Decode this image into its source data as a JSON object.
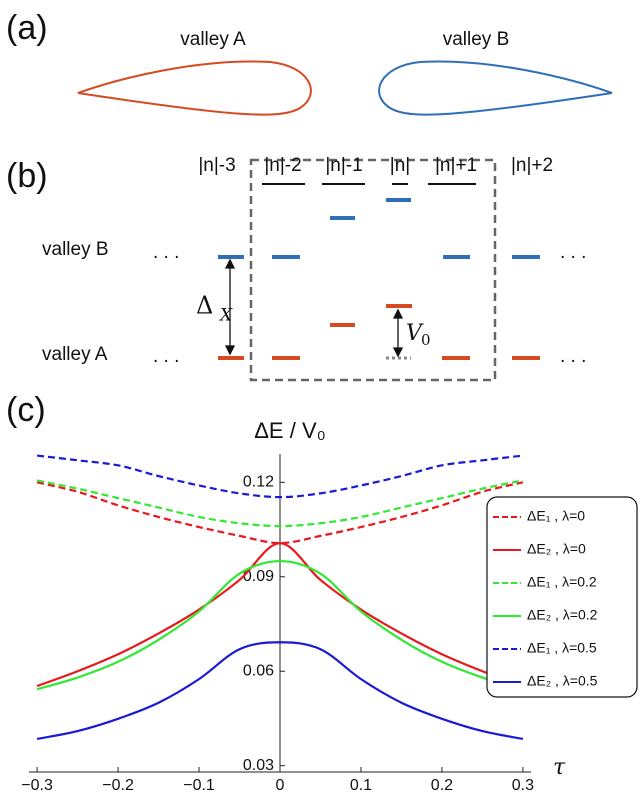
{
  "panel_a": {
    "label": "(a)",
    "valley_labels": [
      "valley A",
      "valley B"
    ]
  },
  "panel_b": {
    "label": "(b)",
    "levels": [
      "|n|-3",
      "|n|-2",
      "|n|-1",
      "|n|",
      "|n|+1",
      "|n|+2"
    ],
    "rows": [
      "valley B",
      "valley A"
    ],
    "ellipsis": ". . .",
    "delta": "Δ",
    "delta_sub": "X",
    "v": "V",
    "v_sub": "0"
  },
  "chart_data": {
    "type": "line",
    "panel_label": "(c)",
    "ylabel": "ΔE / V₀",
    "xlabel": "τ",
    "x": [
      -0.3,
      -0.25,
      -0.2,
      -0.15,
      -0.1,
      -0.05,
      0,
      0.05,
      0.1,
      0.15,
      0.2,
      0.25,
      0.3
    ],
    "xlim": [
      -0.31,
      0.31
    ],
    "ylim": [
      0.028,
      0.129
    ],
    "xticks": [
      {
        "value": -0.3,
        "label": "−0.3"
      },
      {
        "value": -0.2,
        "label": "−0.2"
      },
      {
        "value": -0.1,
        "label": "−0.1"
      },
      0,
      0.1,
      0.2,
      0.3
    ],
    "yticks": [
      0.03,
      0.06,
      0.09,
      0.12
    ],
    "legend": "right",
    "series": [
      {
        "name": "ΔE₁ , λ=0",
        "color": "#e8191e",
        "dash": "dashed",
        "values": [
          0.12,
          0.117,
          0.1127,
          0.109,
          0.1058,
          0.103,
          0.1007,
          0.103,
          0.1058,
          0.109,
          0.1127,
          0.117,
          0.12
        ]
      },
      {
        "name": "ΔE₂ , λ=0",
        "color": "#e8191e",
        "dash": "solid",
        "values": [
          0.0553,
          0.06,
          0.0654,
          0.072,
          0.0796,
          0.089,
          0.1007,
          0.089,
          0.0796,
          0.072,
          0.0654,
          0.06,
          0.0553
        ]
      },
      {
        "name": "ΔE₁ , λ=0.2",
        "color": "#33e833",
        "dash": "dashed",
        "values": [
          0.1206,
          0.118,
          0.115,
          0.112,
          0.109,
          0.107,
          0.1061,
          0.107,
          0.109,
          0.112,
          0.115,
          0.118,
          0.1206
        ]
      },
      {
        "name": "ΔE₂ , λ=0.2",
        "color": "#33e833",
        "dash": "solid",
        "values": [
          0.0543,
          0.058,
          0.063,
          0.07,
          0.079,
          0.091,
          0.095,
          0.091,
          0.079,
          0.07,
          0.063,
          0.058,
          0.0543
        ]
      },
      {
        "name": "ΔE₁ , λ=0.5",
        "color": "#1a1ad6",
        "dash": "dashed",
        "values": [
          0.1285,
          0.127,
          0.1254,
          0.122,
          0.119,
          0.1165,
          0.1153,
          0.1165,
          0.119,
          0.122,
          0.1254,
          0.127,
          0.1285
        ]
      },
      {
        "name": "ΔE₂ , λ=0.5",
        "color": "#1a1ad6",
        "dash": "solid",
        "values": [
          0.0385,
          0.041,
          0.0449,
          0.05,
          0.0575,
          0.067,
          0.0692,
          0.067,
          0.0575,
          0.05,
          0.0449,
          0.041,
          0.0385
        ]
      }
    ]
  }
}
